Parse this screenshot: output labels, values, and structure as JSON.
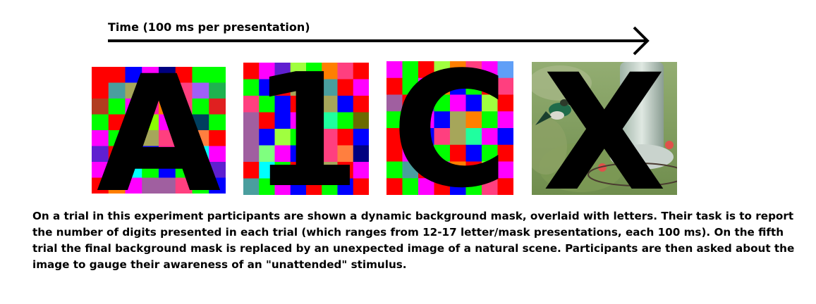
{
  "timeline": {
    "label": "Time (100 ms per presentation)"
  },
  "stimuli": [
    {
      "letter": "A",
      "background": "color-mask",
      "cols": 8,
      "rows": 8,
      "cells": [
        "#ff0000",
        "#ff0000",
        "#0000ff",
        "#ff00ff",
        "#000080",
        "#ff0000",
        "#00ff00",
        "#00ff00",
        "#ff0000",
        "#4a9e9e",
        "#a6a65a",
        "#ff0000",
        "#8bff00",
        "#ff3f7f",
        "#a05ff7",
        "#1fb24f",
        "#b23c1f",
        "#00ff00",
        "#ff00ff",
        "#ff1fa0",
        "#ff7f00",
        "#ff3f7f",
        "#00ff00",
        "#e02020",
        "#00ff00",
        "#ff0000",
        "#00ff00",
        "#8bff00",
        "#ff00ff",
        "#ff0000",
        "#003f5f",
        "#00ff00",
        "#ff00ff",
        "#00ff00",
        "#0000ff",
        "#a6a65a",
        "#ff3f7f",
        "#00ff00",
        "#ff7f3f",
        "#ff0000",
        "#5f1fd0",
        "#ff0000",
        "#ff00ff",
        "#0000ff",
        "#ff1fa0",
        "#a05ff7",
        "#00ffff",
        "#ff00ff",
        "#ff00ff",
        "#ff0000",
        "#00ffff",
        "#00ff00",
        "#0000ff",
        "#00ff00",
        "#ff0000",
        "#5f1fd0",
        "#ff0000",
        "#ff7f00",
        "#ff00ff",
        "#a05fa0",
        "#a05fa0",
        "#ff3f7f",
        "#00ff00",
        "#0000ff"
      ]
    },
    {
      "letter": "1",
      "background": "color-mask",
      "cols": 8,
      "rows": 8,
      "cells": [
        "#ff0000",
        "#ff00ff",
        "#5f1fd0",
        "#a0ff3f",
        "#00ff00",
        "#ff7f00",
        "#ff3f7f",
        "#ff0000",
        "#00ff00",
        "#0000ff",
        "#ff0000",
        "#a6a65a",
        "#00ff00",
        "#4a9e9e",
        "#ff0000",
        "#ff00ff",
        "#ff3f7f",
        "#00ff00",
        "#0000ff",
        "#ff0000",
        "#00ff00",
        "#a6a65a",
        "#0000ff",
        "#ff0000",
        "#a05fa0",
        "#ff0000",
        "#0000ff",
        "#ff00ff",
        "#00ff00",
        "#1fff9f",
        "#00ff00",
        "#6b6b00",
        "#a05fa0",
        "#0000ff",
        "#a0ff3f",
        "#00ff00",
        "#ff7f00",
        "#ff3f7f",
        "#ff0000",
        "#0000ff",
        "#a05fa0",
        "#7fff7f",
        "#ff00ff",
        "#0000ff",
        "#00ff00",
        "#ff3f7f",
        "#ff7f3f",
        "#000080",
        "#ff0000",
        "#00ffff",
        "#00ff00",
        "#ff0000",
        "#ff00ff",
        "#a6a65a",
        "#ff0000",
        "#ff00ff",
        "#4a9e9e",
        "#00ff00",
        "#ff00ff",
        "#0000ff",
        "#ff0000",
        "#00ff00",
        "#0000ff",
        "#ff0000"
      ]
    },
    {
      "letter": "C",
      "background": "color-mask",
      "cols": 8,
      "rows": 8,
      "cells": [
        "#ff00ff",
        "#00ff00",
        "#ff0000",
        "#a0ff3f",
        "#ff7f00",
        "#ff3f7f",
        "#ff00ff",
        "#5f9ff7",
        "#ff0000",
        "#00ff00",
        "#ff00ff",
        "#ff7f00",
        "#0000ff",
        "#00ff00",
        "#ff0000",
        "#ff3f7f",
        "#a05fa0",
        "#ff0000",
        "#5f1fd0",
        "#00ff00",
        "#ff00ff",
        "#0000ff",
        "#a0ff3f",
        "#ff0000",
        "#00ff00",
        "#ff0000",
        "#ff00ff",
        "#0000ff",
        "#a6a65a",
        "#ff7f00",
        "#00ff00",
        "#ff00ff",
        "#ff0000",
        "#00ff00",
        "#0000ff",
        "#ff3f7f",
        "#a6a65a",
        "#1fff9f",
        "#ff00ff",
        "#0000ff",
        "#ff0000",
        "#ff00ff",
        "#4a9e9e",
        "#00ff00",
        "#ff0000",
        "#0000ff",
        "#00ff00",
        "#ff0000",
        "#00ff00",
        "#4a9e9e",
        "#ff0000",
        "#ff00ff",
        "#ff7f00",
        "#ff0000",
        "#a0ff3f",
        "#ff00ff",
        "#ff0000",
        "#00ff00",
        "#ff00ff",
        "#ff0000",
        "#0000ff",
        "#00ff00",
        "#ff3f7f",
        "#ff0000"
      ]
    },
    {
      "letter": "X",
      "background": "natural-scene"
    }
  ],
  "caption": "On a trial in this experiment participants are shown a dynamic background mask, overlaid with letters. Their task is to report the number of digits presented in each trial (which ranges from 12-17 letter/mask presentations, each 100 ms). On the fifth trial the final background mask is replaced by an unexpected image of a natural scene. Participants are then asked about the image to gauge their awareness of an \"unattended\" stimulus."
}
